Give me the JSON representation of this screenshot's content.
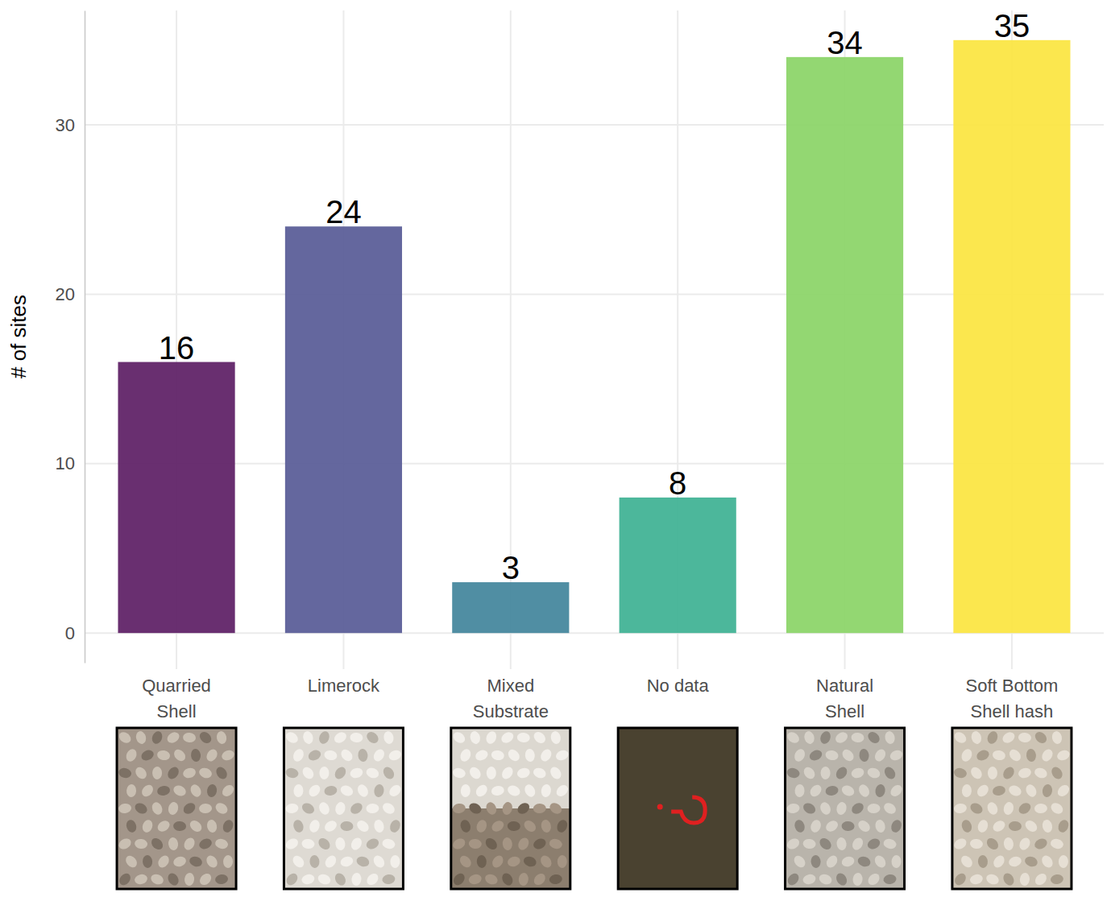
{
  "chart_data": {
    "type": "bar",
    "y_label": "# of sites",
    "categories": [
      "Quarried Shell",
      "Limerock",
      "Mixed Substrate",
      "No data",
      "Natural Shell",
      "Soft Bottom Shell hash"
    ],
    "values": [
      16,
      24,
      3,
      8,
      34,
      35
    ],
    "colors": [
      "#612468",
      "#5c5f99",
      "#47889e",
      "#42b396",
      "#8dd56a",
      "#fbe644"
    ],
    "ylim": [
      -1.75,
      36.75
    ],
    "yticks": [
      0,
      10,
      20,
      30
    ],
    "grid": true,
    "data_labels": true
  }
}
